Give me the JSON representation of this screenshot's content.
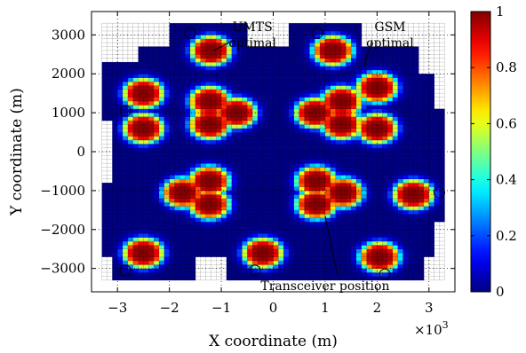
{
  "chart_data": {
    "type": "heatmap",
    "title": "",
    "xlabel": "X coordinate (m)",
    "ylabel": "Y coordinate (m)",
    "x_multiplier_label": "×10",
    "x_multiplier_exponent": "3",
    "xlim": [
      -3500,
      3500
    ],
    "ylim": [
      -3600,
      3600
    ],
    "x_ticks": [
      {
        "value": -3000,
        "label": "−3"
      },
      {
        "value": -2000,
        "label": "−2"
      },
      {
        "value": -1000,
        "label": "−1"
      },
      {
        "value": 0,
        "label": "0"
      },
      {
        "value": 1000,
        "label": "1"
      },
      {
        "value": 2000,
        "label": "2"
      },
      {
        "value": 3000,
        "label": "3"
      }
    ],
    "y_ticks": [
      {
        "value": -3000,
        "label": "−3000"
      },
      {
        "value": -2000,
        "label": "−2000"
      },
      {
        "value": -1000,
        "label": "−1000"
      },
      {
        "value": 0,
        "label": "0"
      },
      {
        "value": 1000,
        "label": "1000"
      },
      {
        "value": 2000,
        "label": "2000"
      },
      {
        "value": 3000,
        "label": "3000"
      }
    ],
    "grid": true,
    "colorbar": {
      "range": [
        0,
        1
      ],
      "ticks": [
        {
          "value": 0,
          "label": "0"
        },
        {
          "value": 0.2,
          "label": "0.2"
        },
        {
          "value": 0.4,
          "label": "0.4"
        },
        {
          "value": 0.6,
          "label": "0.6"
        },
        {
          "value": 0.8,
          "label": "0.8"
        },
        {
          "value": 1,
          "label": "1"
        }
      ]
    },
    "transceivers": [
      {
        "x": -1600,
        "y": 3050
      },
      {
        "x": 850,
        "y": 3050
      },
      {
        "x": -2850,
        "y": 1050
      },
      {
        "x": 3200,
        "y": -1050
      },
      {
        "x": -2850,
        "y": -3050
      },
      {
        "x": -350,
        "y": -3050
      },
      {
        "x": 2150,
        "y": -3150
      }
    ],
    "annotations": [
      {
        "id": "umts",
        "lines": [
          "UMTS",
          "optimal"
        ],
        "x": -400,
        "y": 3100,
        "arrow_to": [
          -1150,
          2600
        ]
      },
      {
        "id": "gsm",
        "lines": [
          "GSM",
          "optimal"
        ],
        "x": 2250,
        "y": 3100,
        "arrow_to": [
          1750,
          2200
        ]
      },
      {
        "id": "transceiver",
        "lines": [
          "Transceiver position"
        ],
        "x": 1000,
        "y": -3550,
        "arrow_to": [
          1000,
          -1650
        ]
      }
    ]
  }
}
